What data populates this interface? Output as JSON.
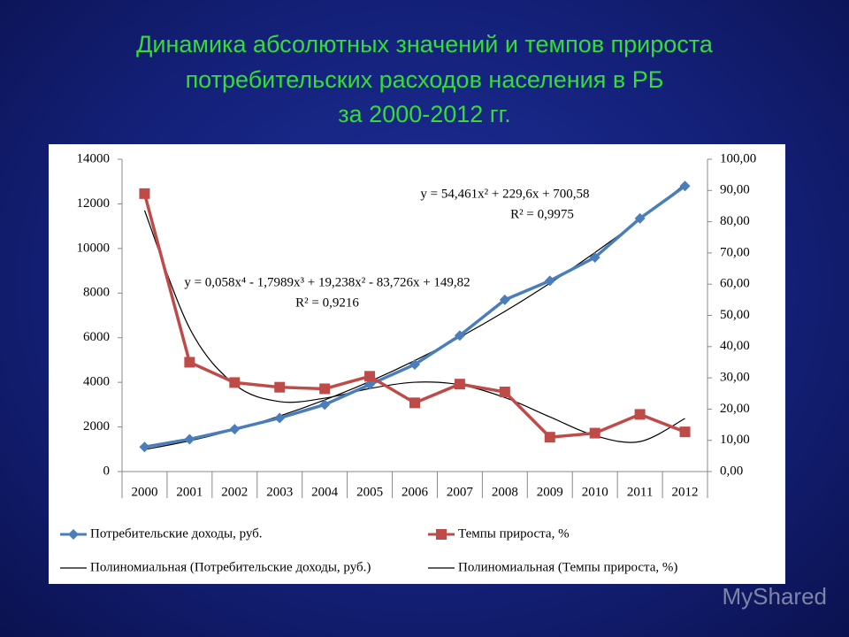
{
  "chart_data": {
    "type": "line",
    "title": [
      "Динамика абсолютных значений и темпов прироста",
      "потребительских расходов населения в РБ",
      "за 2000-2012 гг."
    ],
    "categories": [
      "2000",
      "2001",
      "2002",
      "2003",
      "2004",
      "2005",
      "2006",
      "2007",
      "2008",
      "2009",
      "2010",
      "2011",
      "2012"
    ],
    "series": [
      {
        "name": "Потребительские доходы, руб.",
        "color": "#4a7ebb",
        "marker": "diamond",
        "values": [
          1100,
          1450,
          1900,
          2400,
          3000,
          3900,
          4800,
          6100,
          7700,
          8550,
          9600,
          11350,
          12800
        ]
      },
      {
        "name": "Темпы прироста, %",
        "color": "#be4b48",
        "marker": "square",
        "axis": "y2",
        "values": [
          89,
          35,
          28.5,
          27,
          26.5,
          30.5,
          22,
          28,
          25.5,
          11,
          12.3,
          18.3,
          12.7
        ]
      },
      {
        "name": "Полиномиальная (Потребительские доходы, руб.)",
        "color": "#000000",
        "marker": "none",
        "smooth": true,
        "values": [
          985,
          1378,
          1880,
          2490,
          3210,
          4039,
          4976,
          6023,
          7178,
          8443,
          9816,
          11298,
          12889
        ]
      },
      {
        "name": "Полиномиальная (Темпы прироста, %)",
        "color": "#000000",
        "marker": "none",
        "smooth": true,
        "axis": "y2",
        "values": [
          83.6,
          45.9,
          27.9,
          22.4,
          23.5,
          26.6,
          28.6,
          27.8,
          23.7,
          17.5,
          11.5,
          9.6,
          17.0
        ]
      }
    ],
    "ylim": [
      0,
      14000
    ],
    "yticks": [
      0,
      2000,
      4000,
      6000,
      8000,
      10000,
      12000,
      14000
    ],
    "y2lim": [
      0,
      100
    ],
    "y2ticks": [
      {
        "value": 0,
        "label": "0,00"
      },
      {
        "value": 10,
        "label": "10,00"
      },
      {
        "value": 20,
        "label": "20,00"
      },
      {
        "value": 30,
        "label": "30,00"
      },
      {
        "value": 40,
        "label": "40,00"
      },
      {
        "value": 50,
        "label": "50,00"
      },
      {
        "value": 60,
        "label": "60,00"
      },
      {
        "value": 70,
        "label": "70,00"
      },
      {
        "value": 80,
        "label": "80,00"
      },
      {
        "value": 90,
        "label": "90,00"
      },
      {
        "value": 100,
        "label": "100,00"
      }
    ],
    "annotations": [
      "y = 54,461x² + 229,6x + 700,58",
      "R² = 0,9975",
      "y = 0,058x⁴ - 1,7989x³ + 19,238x² - 83,726x + 149,82",
      "R² = 0,9216"
    ],
    "legend": "bottom",
    "grid": false
  },
  "watermark": "MyShared"
}
